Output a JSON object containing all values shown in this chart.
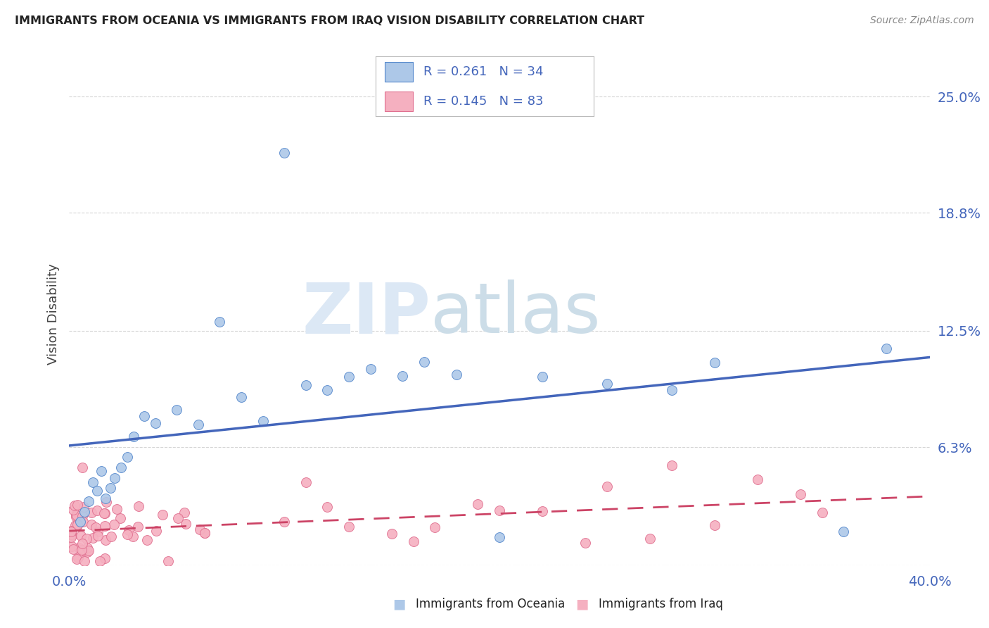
{
  "title": "IMMIGRANTS FROM OCEANIA VS IMMIGRANTS FROM IRAQ VISION DISABILITY CORRELATION CHART",
  "source": "Source: ZipAtlas.com",
  "ylabel": "Vision Disability",
  "yticks": [
    0.0,
    0.063,
    0.125,
    0.188,
    0.25
  ],
  "ytick_labels": [
    "",
    "6.3%",
    "12.5%",
    "18.8%",
    "25.0%"
  ],
  "xlim": [
    0.0,
    0.4
  ],
  "ylim": [
    0.0,
    0.268
  ],
  "background_color": "#ffffff",
  "grid_color": "#cccccc",
  "oceania_color": "#adc8e8",
  "oceania_edge_color": "#5588cc",
  "oceania_line_color": "#4466bb",
  "iraq_color": "#f5b0c0",
  "iraq_edge_color": "#e07090",
  "iraq_line_color": "#cc4466",
  "R_oceania": 0.261,
  "N_oceania": 34,
  "R_iraq": 0.145,
  "N_iraq": 83,
  "legend_text_color": "#4466bb",
  "title_color": "#222222",
  "source_color": "#888888",
  "ylabel_color": "#444444",
  "xtick_color": "#4466bb",
  "ytick_color": "#4466bb",
  "watermark_zip_color": "#dce8f5",
  "watermark_atlas_color": "#ccdde8"
}
